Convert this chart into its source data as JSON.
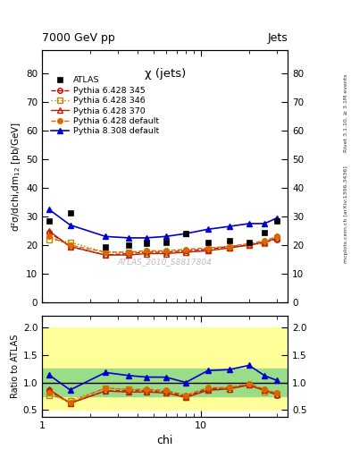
{
  "title_top_left": "7000 GeV pp",
  "title_top_right": "Jets",
  "plot_title": "χ (jets)",
  "ylabel_main": "d²σ/dchi,dm$_{12}$ [pb/GeV]",
  "ylabel_ratio": "Ratio to ATLAS",
  "xlabel": "chi",
  "watermark": "ATLAS_2010_S8817804",
  "right_label_top": "Rivet 3.1.10, ≥ 3.1M events",
  "right_label_bot": "mcplots.cern.ch [arXiv:1306.3436]",
  "chi_values": [
    1.1,
    1.5,
    2.5,
    3.5,
    4.5,
    6.0,
    8.0,
    11.0,
    15.0,
    20.0,
    25.0,
    30.0
  ],
  "atlas_y": [
    28.5,
    31.2,
    19.5,
    20.0,
    20.5,
    21.0,
    24.0,
    21.0,
    21.5,
    21.0,
    24.5,
    28.5
  ],
  "p6_345_y": [
    24.5,
    19.5,
    16.5,
    17.0,
    17.5,
    17.5,
    18.0,
    18.5,
    19.5,
    20.0,
    21.0,
    22.0
  ],
  "p6_346_y": [
    22.0,
    21.0,
    17.5,
    17.5,
    17.5,
    17.5,
    17.5,
    18.0,
    19.0,
    20.0,
    20.5,
    22.5
  ],
  "p6_370_y": [
    25.0,
    19.5,
    16.5,
    16.5,
    17.0,
    17.0,
    17.5,
    18.0,
    19.0,
    20.0,
    21.0,
    22.5
  ],
  "p6_def_y": [
    23.0,
    20.0,
    17.5,
    17.5,
    18.0,
    18.0,
    18.5,
    19.0,
    19.5,
    20.5,
    21.5,
    23.0
  ],
  "p8_def_y": [
    32.5,
    27.0,
    23.0,
    22.5,
    22.5,
    23.0,
    24.0,
    25.5,
    26.5,
    27.5,
    27.5,
    29.5
  ],
  "green_band_low": 0.75,
  "green_band_high": 1.25,
  "yellow_band_low": 0.5,
  "yellow_band_high": 2.0,
  "color_atlas": "#000000",
  "color_p6_345": "#cc0000",
  "color_p6_346": "#bb8800",
  "color_p6_370": "#bb2200",
  "color_p6_def": "#dd6600",
  "color_p8_def": "#0000cc",
  "ylim_main": [
    0,
    88
  ],
  "ylim_ratio": [
    0.38,
    2.2
  ],
  "yticks_main": [
    0,
    10,
    20,
    30,
    40,
    50,
    60,
    70,
    80
  ],
  "yticks_ratio": [
    0.5,
    1.0,
    1.5,
    2.0
  ]
}
